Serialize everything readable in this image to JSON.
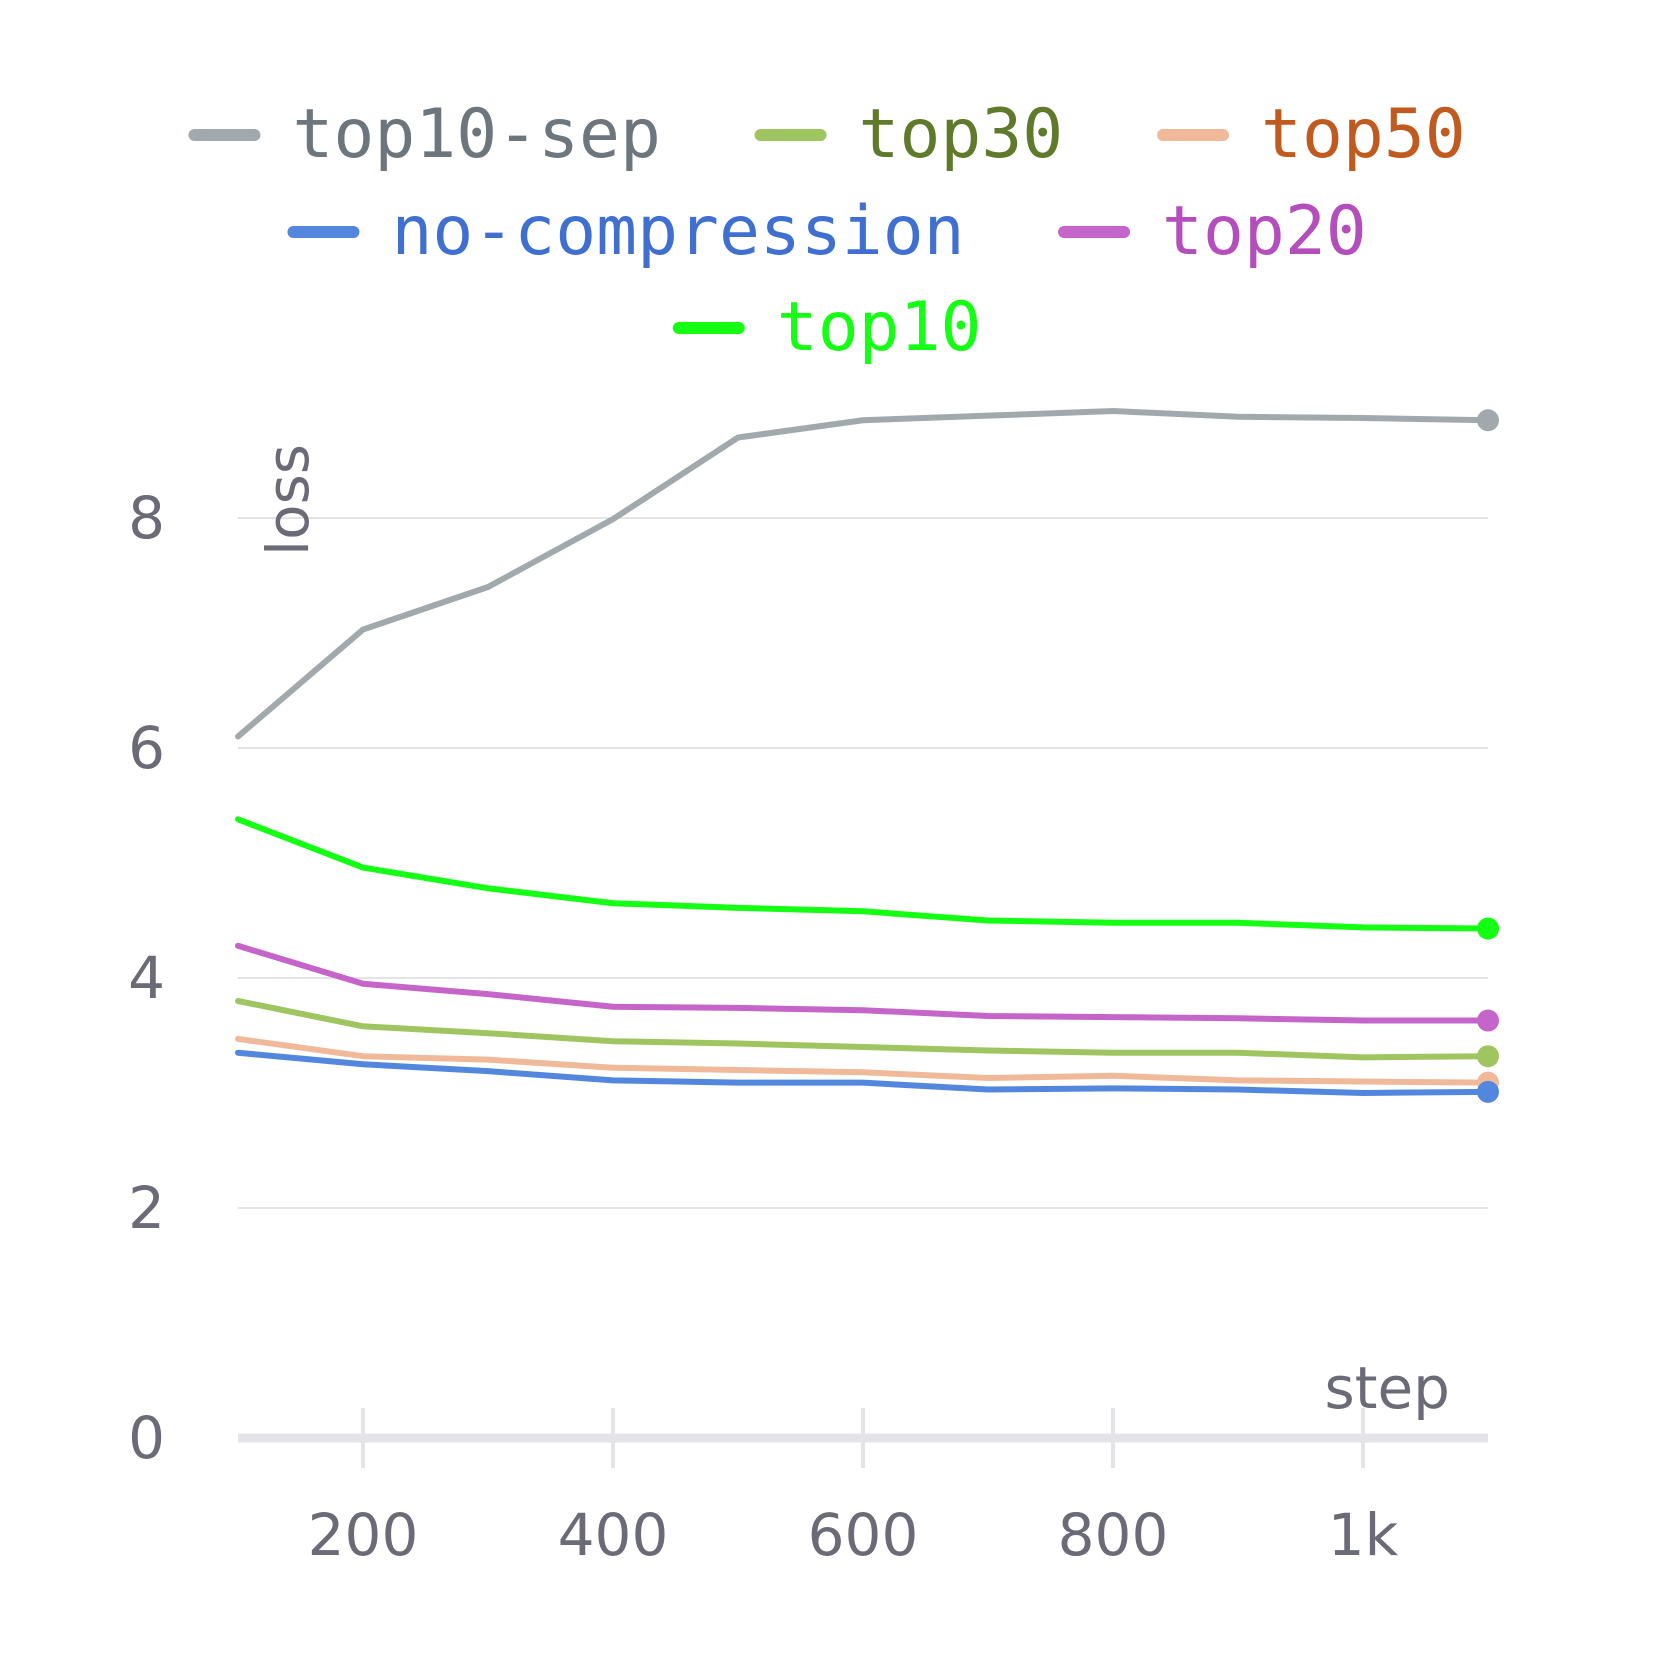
{
  "chart_data": {
    "type": "line",
    "xlabel": "step",
    "ylabel": "loss",
    "xlim": [
      100,
      1100
    ],
    "ylim": [
      0,
      9
    ],
    "x_ticks": [
      {
        "value": 200,
        "label": "200"
      },
      {
        "value": 400,
        "label": "400"
      },
      {
        "value": 600,
        "label": "600"
      },
      {
        "value": 800,
        "label": "800"
      },
      {
        "value": 1000,
        "label": "1k"
      }
    ],
    "y_ticks": [
      {
        "value": 0,
        "label": "0"
      },
      {
        "value": 2,
        "label": "2"
      },
      {
        "value": 4,
        "label": "4"
      },
      {
        "value": 6,
        "label": "6"
      },
      {
        "value": 8,
        "label": "8"
      }
    ],
    "grid": true,
    "legend_position": "top",
    "x": [
      100,
      200,
      300,
      400,
      500,
      600,
      700,
      800,
      900,
      1000,
      1100
    ],
    "series": [
      {
        "name": "top10-sep",
        "color": "#a2a9ad",
        "text_color": "#6d757d",
        "values": [
          6.1,
          7.03,
          7.4,
          7.99,
          8.7,
          8.85,
          8.89,
          8.93,
          8.88,
          8.87,
          8.85
        ]
      },
      {
        "name": "top30",
        "color": "#9fc560",
        "text_color": "#5f7a2a",
        "values": [
          3.8,
          3.58,
          3.52,
          3.45,
          3.43,
          3.4,
          3.37,
          3.35,
          3.35,
          3.31,
          3.32
        ]
      },
      {
        "name": "top50",
        "color": "#f0b99a",
        "text_color": "#c05a1f",
        "values": [
          3.47,
          3.32,
          3.29,
          3.22,
          3.2,
          3.18,
          3.13,
          3.15,
          3.11,
          3.1,
          3.09
        ]
      },
      {
        "name": "no-compression",
        "color": "#5387dd",
        "text_color": "#3f6fd1",
        "values": [
          3.35,
          3.25,
          3.19,
          3.11,
          3.09,
          3.09,
          3.03,
          3.04,
          3.03,
          3.0,
          3.01
        ]
      },
      {
        "name": "top20",
        "color": "#c565c9",
        "text_color": "#b44ebd",
        "values": [
          4.28,
          3.95,
          3.86,
          3.75,
          3.74,
          3.72,
          3.67,
          3.66,
          3.65,
          3.63,
          3.63
        ]
      },
      {
        "name": "top10",
        "color": "#14ff14",
        "text_color": "#14ff14",
        "values": [
          5.38,
          4.96,
          4.78,
          4.65,
          4.61,
          4.58,
          4.5,
          4.48,
          4.48,
          4.44,
          4.43
        ]
      }
    ]
  }
}
